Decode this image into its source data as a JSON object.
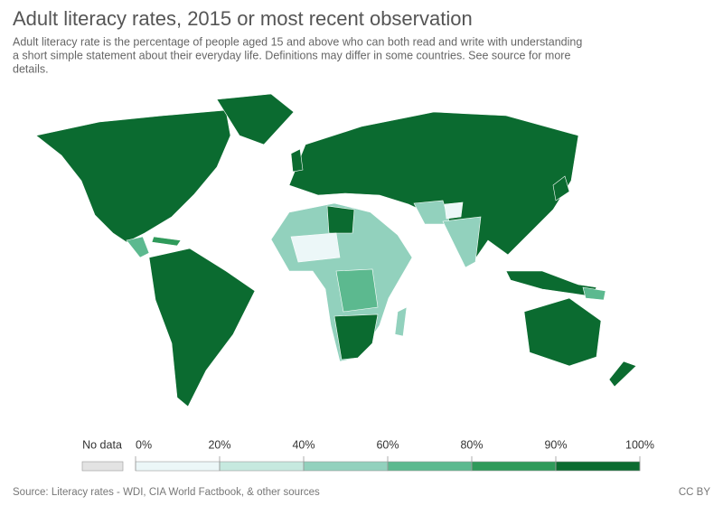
{
  "header": {
    "title": "Adult literacy rates, 2015 or most recent observation",
    "subtitle_lines": [
      "Adult literacy rate is the percentage of people aged 15 and above who can both read and write with understanding",
      "a short simple statement about their everyday life. Definitions may differ in some countries. See source for more",
      "details."
    ]
  },
  "legend": {
    "no_data": "No data",
    "no_data_color": "#e3e3e3",
    "ticks": [
      {
        "value": 0,
        "label": "0%"
      },
      {
        "value": 20,
        "label": "20%"
      },
      {
        "value": 40,
        "label": "40%"
      },
      {
        "value": 60,
        "label": "60%"
      },
      {
        "value": 80,
        "label": "80%"
      },
      {
        "value": 90,
        "label": "90%"
      },
      {
        "value": 100,
        "label": "100%"
      }
    ],
    "colors": [
      "#ecf7f8",
      "#c6e9df",
      "#92d1bd",
      "#5cb98f",
      "#2f9a5a",
      "#0b6b30"
    ]
  },
  "footer": {
    "source": "Source: Literacy rates - WDI, CIA World Factbook, & other sources",
    "license": "CC BY"
  }
}
